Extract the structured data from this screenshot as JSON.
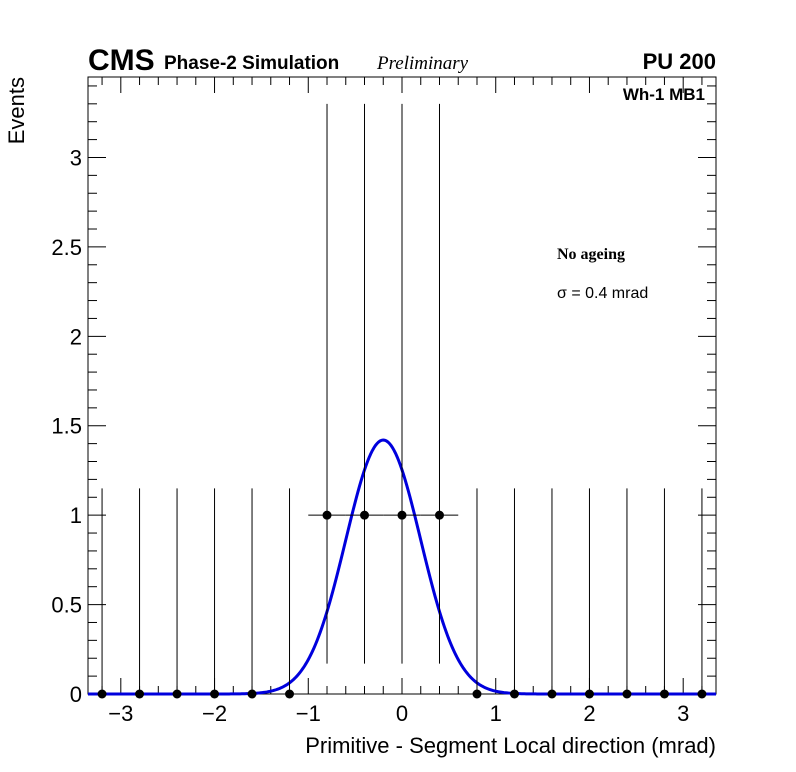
{
  "header": {
    "experiment": "CMS",
    "simulation": "Phase-2 Simulation",
    "status": "Preliminary",
    "pileup": "PU 200"
  },
  "region": "Wh-1 MB1",
  "legend": {
    "ageing": "No ageing",
    "sigma_text": "σ = 0.4 mrad"
  },
  "chart_data": {
    "type": "scatter",
    "title": "",
    "xlabel": "Primitive - Segment Local direction (mrad)",
    "ylabel": "Events",
    "xlim": [
      -3.35,
      3.35
    ],
    "ylim": [
      0,
      3.45
    ],
    "x_ticks": [
      -3,
      -2,
      -1,
      0,
      1,
      2,
      3
    ],
    "x_tick_labels": [
      "−3",
      "−2",
      "−1",
      "0",
      "1",
      "2",
      "3"
    ],
    "y_ticks": [
      0,
      0.5,
      1,
      1.5,
      2,
      2.5,
      3
    ],
    "y_tick_labels": [
      "0",
      "0.5",
      "1",
      "1.5",
      "2",
      "2.5",
      "3"
    ],
    "series": [
      {
        "name": "data",
        "x": [
          -3.2,
          -2.8,
          -2.4,
          -2.0,
          -1.6,
          -1.2,
          -0.8,
          -0.4,
          0.0,
          0.4,
          0.8,
          1.2,
          1.6,
          2.0,
          2.4,
          2.8,
          3.2
        ],
        "y": [
          0,
          0,
          0,
          0,
          0,
          0,
          1,
          1,
          1,
          1,
          0,
          0,
          0,
          0,
          0,
          0,
          0
        ],
        "y_err_low": [
          0,
          0,
          0,
          0,
          0,
          0,
          0.83,
          0.83,
          0.83,
          0.83,
          0,
          0,
          0,
          0,
          0,
          0,
          0
        ],
        "y_err_high": [
          1.15,
          1.15,
          1.15,
          1.15,
          1.15,
          1.15,
          2.3,
          2.3,
          2.3,
          2.3,
          1.15,
          1.15,
          1.15,
          1.15,
          1.15,
          1.15,
          1.15
        ],
        "x_err": 0.2,
        "color": "#000000"
      },
      {
        "name": "gaussian fit",
        "type": "line",
        "amplitude": 1.42,
        "mean": -0.2,
        "sigma": 0.4,
        "color": "#0000dd"
      }
    ]
  }
}
